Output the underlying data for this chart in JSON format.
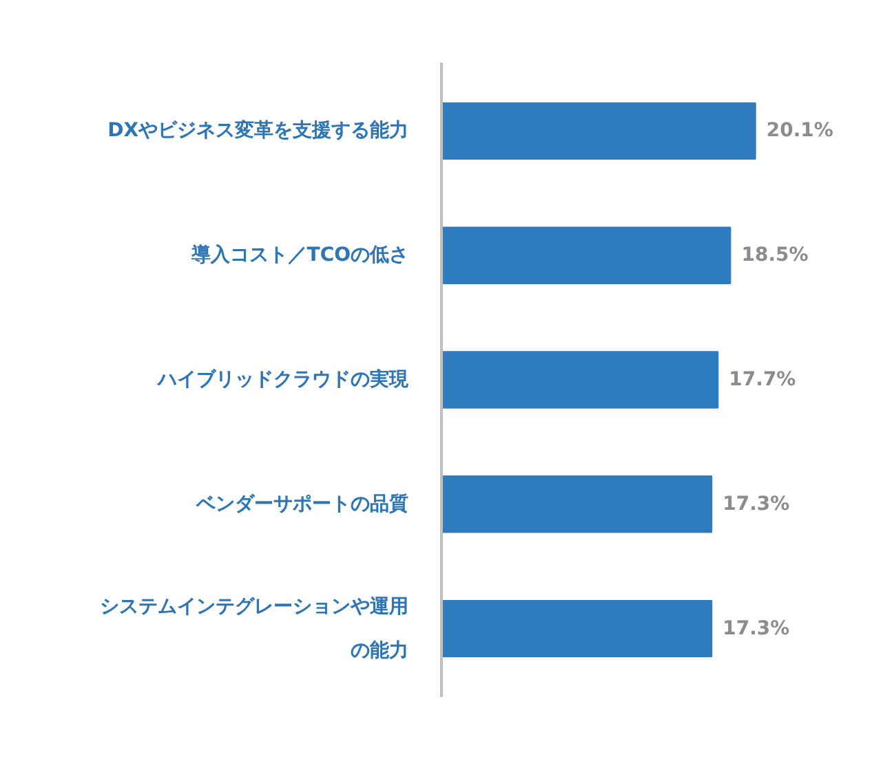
{
  "chart_data": {
    "type": "bar",
    "orientation": "horizontal",
    "categories": [
      "DXやビジネス変革を支援する能力",
      "導入コスト／TCOの低さ",
      "ハイブリッドクラウドの実現",
      "ベンダーサポートの品質",
      "システムインテグレーションや運用の能力"
    ],
    "values": [
      20.1,
      18.5,
      17.7,
      17.3,
      17.3
    ],
    "value_labels": [
      "20.1%",
      "18.5%",
      "17.7%",
      "17.3%",
      "17.3%"
    ],
    "color": "#2e7bbf",
    "grid": false
  }
}
